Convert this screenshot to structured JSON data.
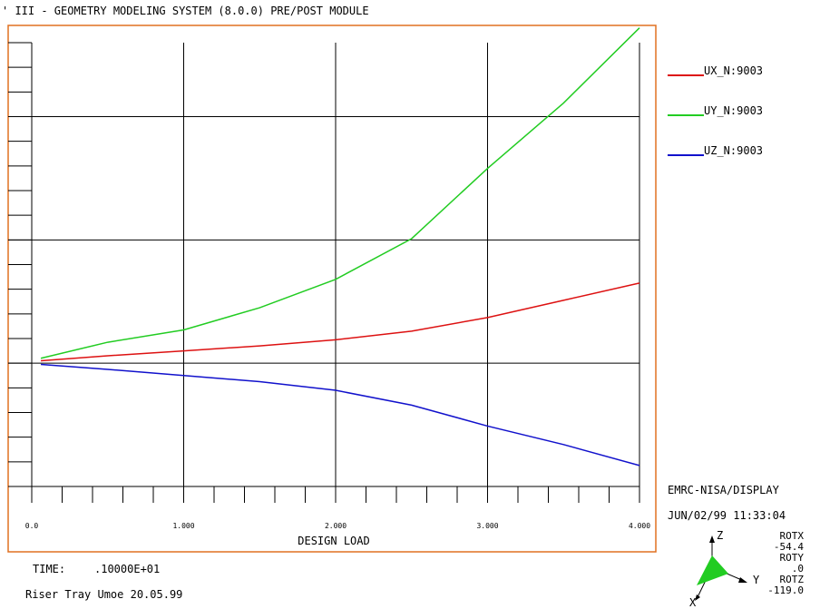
{
  "header": {
    "title": "' III - GEOMETRY MODELING SYSTEM (8.0.0)  PRE/POST MODULE"
  },
  "chart_data": {
    "type": "line",
    "title": "",
    "xlabel": "DESIGN LOAD",
    "ylabel": "",
    "xlim": [
      0.0,
      4.0
    ],
    "ylim": [
      -5,
      13
    ],
    "grid": true,
    "legend": "right",
    "x_ticks": [
      "0.0",
      "1.000",
      "2.000",
      "3.000",
      "4.000"
    ],
    "x_tick_values": [
      0,
      1,
      2,
      3,
      4
    ],
    "series": [
      {
        "name": "UX_N:9003",
        "color": "#dd1111",
        "x": [
          0.06,
          0.5,
          1.0,
          1.5,
          2.0,
          2.5,
          3.0,
          3.5,
          4.0
        ],
        "y": [
          0.1,
          0.3,
          0.5,
          0.7,
          0.95,
          1.3,
          1.85,
          2.55,
          3.25
        ]
      },
      {
        "name": "UY_N:9003",
        "color": "#22cc22",
        "x": [
          0.06,
          0.5,
          1.0,
          1.5,
          2.0,
          2.5,
          3.0,
          3.5,
          4.0
        ],
        "y": [
          0.2,
          0.85,
          1.35,
          2.25,
          3.4,
          5.05,
          7.9,
          10.55,
          13.6
        ]
      },
      {
        "name": "UZ_N:9003",
        "color": "#1111cc",
        "x": [
          0.06,
          0.5,
          1.0,
          1.5,
          2.0,
          2.5,
          3.0,
          3.5,
          4.0
        ],
        "y": [
          -0.05,
          -0.25,
          -0.5,
          -0.75,
          -1.1,
          -1.7,
          -2.55,
          -3.3,
          -4.15
        ]
      }
    ]
  },
  "footer": {
    "time_label": "TIME:",
    "time_value": ".10000E+01",
    "caption": "Riser Tray Umoe 20.05.99"
  },
  "info": {
    "program": "EMRC-NISA/DISPLAY",
    "timestamp": "JUN/02/99 11:33:04",
    "rotx_label": "ROTX",
    "rotx_value": "-54.4",
    "roty_label": "ROTY",
    "roty_value": ".0",
    "rotz_label": "ROTZ",
    "rotz_value": "-119.0",
    "axis_z": "Z",
    "axis_y": "Y",
    "axis_x": "X"
  },
  "colors": {
    "frame": "#e07020",
    "grid": "#000000",
    "triad": "#22cc22"
  }
}
